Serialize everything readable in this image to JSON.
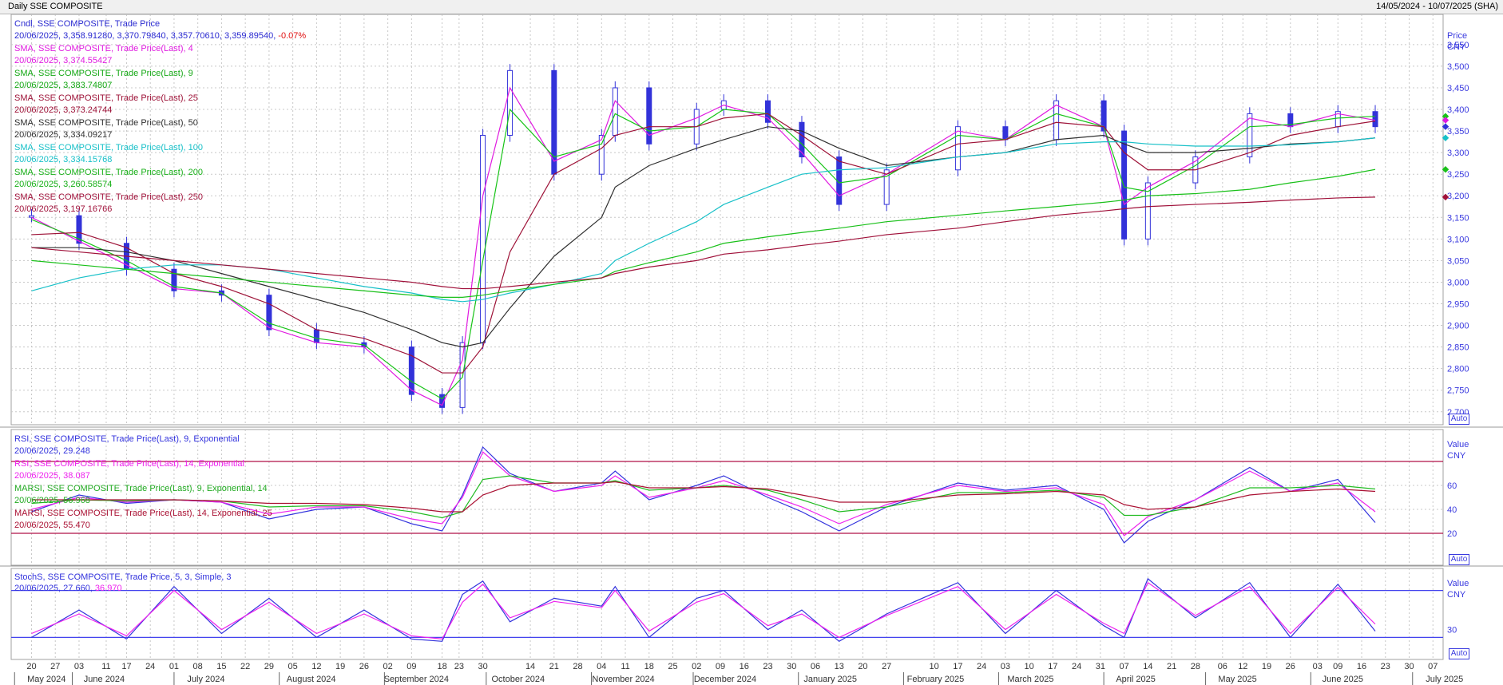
{
  "window": {
    "title": "Daily SSE COMPOSITE",
    "range": "14/05/2024 - 10/07/2025 (SHA)"
  },
  "colors": {
    "candle": "#3232d9",
    "sma4": "#e01be0",
    "sma9": "#18c418",
    "sma25": "#9e1338",
    "sma50": "#303030",
    "sma100": "#17c0c8",
    "sma200": "#19c019",
    "sma250": "#a0113a",
    "rsi9": "#3333dd",
    "rsi14": "#ee22ee",
    "marsi9": "#22bb22",
    "marsi14": "#aa1133",
    "band": "#b01048",
    "stoch_k": "#3333dd",
    "stoch_d": "#ee22ee",
    "stoch_band": "#4444ee"
  },
  "legends": {
    "price": [
      {
        "name": "Cndl, SSE COMPOSITE, Trade Price",
        "value": "20/06/2025, 3,358.91280, 3,370.79840, 3,357.70610, 3,359.89540,",
        "change": "-0.07%",
        "color": "#2a2ad0"
      },
      {
        "name": "SMA, SSE COMPOSITE, Trade Price(Last),  4",
        "value": "20/06/2025, 3,374.55427",
        "color": "#e01be0"
      },
      {
        "name": "SMA, SSE COMPOSITE, Trade Price(Last),  9",
        "value": "20/06/2025, 3,383.74807",
        "color": "#15a815"
      },
      {
        "name": "SMA, SSE COMPOSITE, Trade Price(Last),  25",
        "value": "20/06/2025, 3,373.24744",
        "color": "#9e1338"
      },
      {
        "name": "SMA, SSE COMPOSITE, Trade Price(Last),  50",
        "value": "20/06/2025, 3,334.09217",
        "color": "#303030"
      },
      {
        "name": "SMA, SSE COMPOSITE, Trade Price(Last),  100",
        "value": "20/06/2025, 3,334.15768",
        "color": "#17c0c8"
      },
      {
        "name": "SMA, SSE COMPOSITE, Trade Price(Last),  200",
        "value": "20/06/2025, 3,260.58574",
        "color": "#19b019"
      },
      {
        "name": "SMA, SSE COMPOSITE, Trade Price(Last),  250",
        "value": "20/06/2025, 3,197.16766",
        "color": "#a0113a"
      }
    ],
    "rsi": [
      {
        "name": "RSI, SSE COMPOSITE, Trade Price(Last),  9, Exponential",
        "value": "20/06/2025, 29.248",
        "color": "#3333dd"
      },
      {
        "name": "RSI, SSE COMPOSITE, Trade Price(Last),  14, Exponential",
        "value": "20/06/2025, 38.087",
        "color": "#ee22ee"
      },
      {
        "name": "MARSI, SSE COMPOSITE, Trade Price(Last),  9, Exponential, 14",
        "value": "20/06/2025, 56.968",
        "color": "#22aa22"
      },
      {
        "name": "MARSI, SSE COMPOSITE, Trade Price(Last),  14, Exponential, 25",
        "value": "20/06/2025, 55.470",
        "color": "#aa1133"
      }
    ],
    "stoch": [
      {
        "name": "StochS, SSE COMPOSITE, Trade Price,  5, 3, Simple, 3",
        "value": "20/06/2025, 27.660,",
        "value2": "36.970",
        "color": "#3333dd",
        "color2": "#ee22ee"
      }
    ]
  },
  "axes": {
    "price_label": "Price",
    "price_unit": "CNY",
    "price_ticks": [
      "3,550",
      "3,500",
      "3,450",
      "3,400",
      "3,350",
      "3,300",
      "3,250",
      "3,200",
      "3,150",
      "3,100",
      "3,050",
      "3,000",
      "2,950",
      "2,900",
      "2,850",
      "2,800",
      "2,750",
      "2,700"
    ],
    "rsi_label": "Value",
    "rsi_unit": "CNY",
    "rsi_ticks": [
      "60",
      "40",
      "20"
    ],
    "stoch_label": "Value",
    "stoch_unit": "CNY",
    "stoch_ticks": [
      "30"
    ],
    "auto": "Auto",
    "day_ticks": [
      "20",
      "27",
      "03",
      "11",
      "17",
      "24",
      "01",
      "08",
      "15",
      "22",
      "29",
      "05",
      "12",
      "19",
      "26",
      "02",
      "09",
      "18",
      "23",
      "30",
      "14",
      "21",
      "28",
      "04",
      "11",
      "18",
      "25",
      "02",
      "09",
      "16",
      "23",
      "30",
      "06",
      "13",
      "20",
      "27",
      "10",
      "17",
      "24",
      "03",
      "10",
      "17",
      "24",
      "31",
      "07",
      "14",
      "21",
      "28",
      "06",
      "12",
      "19",
      "26",
      "03",
      "09",
      "16",
      "23",
      "30",
      "07"
    ],
    "month_ticks": [
      "May 2024",
      "June 2024",
      "July 2024",
      "August 2024",
      "September 2024",
      "October 2024",
      "November 2024",
      "December 2024",
      "January 2025",
      "February 2025",
      "March 2025",
      "April 2025",
      "May 2025",
      "June 2025",
      "July 2025"
    ]
  },
  "chart_data": {
    "type": "line",
    "title": "Daily SSE COMPOSITE",
    "subtitle": "14/05/2024 - 10/07/2025 (SHA)",
    "ylabel": "Price CNY",
    "ylim": [
      2670,
      3620
    ],
    "x": [
      "2024-05-20",
      "2024-06-03",
      "2024-06-17",
      "2024-07-01",
      "2024-07-15",
      "2024-07-29",
      "2024-08-12",
      "2024-08-26",
      "2024-09-09",
      "2024-09-18",
      "2024-09-24",
      "2024-09-30",
      "2024-10-08",
      "2024-10-21",
      "2024-11-04",
      "2024-11-08",
      "2024-11-18",
      "2024-12-02",
      "2024-12-10",
      "2024-12-23",
      "2025-01-02",
      "2025-01-13",
      "2025-01-27",
      "2025-02-17",
      "2025-03-03",
      "2025-03-18",
      "2025-04-01",
      "2025-04-07",
      "2025-04-14",
      "2025-04-28",
      "2025-05-14",
      "2025-05-26",
      "2025-06-09",
      "2025-06-20"
    ],
    "series": [
      {
        "name": "Cndl, SSE COMPOSITE, Trade Price",
        "values": [
          3154,
          3090,
          3030,
          2980,
          2970,
          2890,
          2860,
          2850,
          2740,
          2710,
          2860,
          3340,
          3490,
          3250,
          3340,
          3450,
          3320,
          3400,
          3420,
          3370,
          3290,
          3180,
          3260,
          3360,
          3330,
          3420,
          3350,
          3100,
          3230,
          3290,
          3390,
          3360,
          3395,
          3360
        ]
      },
      {
        "name": "SMA 4",
        "values": [
          3150,
          3095,
          3040,
          2985,
          2975,
          2895,
          2860,
          2850,
          2750,
          2715,
          2820,
          3200,
          3450,
          3280,
          3330,
          3420,
          3340,
          3380,
          3410,
          3380,
          3300,
          3200,
          3250,
          3350,
          3330,
          3410,
          3360,
          3180,
          3220,
          3280,
          3380,
          3360,
          3390,
          3375
        ]
      },
      {
        "name": "SMA 9",
        "values": [
          3145,
          3100,
          3050,
          2990,
          2975,
          2905,
          2870,
          2855,
          2770,
          2730,
          2780,
          3050,
          3400,
          3290,
          3320,
          3390,
          3350,
          3360,
          3400,
          3390,
          3320,
          3230,
          3245,
          3340,
          3330,
          3390,
          3360,
          3220,
          3210,
          3270,
          3360,
          3365,
          3380,
          3384
        ]
      },
      {
        "name": "SMA 25",
        "values": [
          3110,
          3115,
          3080,
          3020,
          2990,
          2950,
          2890,
          2870,
          2830,
          2790,
          2790,
          2850,
          3070,
          3250,
          3310,
          3340,
          3360,
          3360,
          3380,
          3390,
          3340,
          3280,
          3250,
          3320,
          3330,
          3370,
          3360,
          3300,
          3260,
          3260,
          3300,
          3340,
          3360,
          3373
        ]
      },
      {
        "name": "SMA 50",
        "values": [
          3080,
          3080,
          3070,
          3050,
          3020,
          2990,
          2960,
          2930,
          2890,
          2860,
          2850,
          2860,
          2940,
          3060,
          3150,
          3220,
          3270,
          3310,
          3330,
          3360,
          3350,
          3310,
          3270,
          3290,
          3300,
          3330,
          3340,
          3320,
          3300,
          3300,
          3310,
          3320,
          3325,
          3334
        ]
      },
      {
        "name": "SMA 100",
        "values": [
          2980,
          3010,
          3030,
          3040,
          3040,
          3030,
          3010,
          2990,
          2975,
          2960,
          2955,
          2960,
          2975,
          2995,
          3020,
          3050,
          3090,
          3140,
          3180,
          3220,
          3250,
          3260,
          3265,
          3290,
          3300,
          3320,
          3325,
          3325,
          3320,
          3315,
          3315,
          3318,
          3325,
          3334
        ]
      },
      {
        "name": "SMA 200",
        "values": [
          3050,
          3040,
          3030,
          3020,
          3010,
          3000,
          2990,
          2980,
          2970,
          2965,
          2965,
          2970,
          2980,
          2995,
          3010,
          3025,
          3045,
          3070,
          3090,
          3105,
          3115,
          3125,
          3140,
          3155,
          3165,
          3175,
          3185,
          3190,
          3200,
          3205,
          3215,
          3230,
          3245,
          3261
        ]
      },
      {
        "name": "SMA 250",
        "values": [
          3080,
          3070,
          3060,
          3050,
          3040,
          3030,
          3020,
          3010,
          3000,
          2990,
          2985,
          2985,
          2990,
          3000,
          3010,
          3020,
          3035,
          3050,
          3065,
          3075,
          3085,
          3095,
          3110,
          3125,
          3140,
          3155,
          3165,
          3170,
          3175,
          3180,
          3185,
          3190,
          3195,
          3197
        ]
      }
    ],
    "rsi": {
      "ylabel": "Value CNY",
      "bands": [
        80,
        20
      ],
      "series": [
        {
          "name": "RSI 9",
          "values": [
            38,
            52,
            45,
            48,
            46,
            32,
            40,
            42,
            28,
            22,
            52,
            92,
            70,
            55,
            62,
            72,
            48,
            60,
            68,
            50,
            38,
            22,
            42,
            62,
            56,
            60,
            40,
            12,
            30,
            48,
            75,
            55,
            65,
            29
          ]
        },
        {
          "name": "RSI 14",
          "values": [
            40,
            50,
            46,
            48,
            46,
            36,
            42,
            42,
            32,
            28,
            50,
            88,
            68,
            55,
            60,
            68,
            50,
            58,
            64,
            52,
            42,
            28,
            44,
            60,
            55,
            58,
            44,
            18,
            34,
            48,
            72,
            55,
            62,
            38
          ]
        },
        {
          "name": "MARSI 9",
          "values": [
            45,
            48,
            47,
            48,
            47,
            42,
            43,
            43,
            38,
            33,
            38,
            65,
            68,
            62,
            62,
            64,
            56,
            58,
            60,
            56,
            48,
            38,
            42,
            54,
            54,
            56,
            50,
            35,
            35,
            42,
            58,
            58,
            60,
            57
          ]
        },
        {
          "name": "MARSI 14",
          "values": [
            48,
            48,
            48,
            48,
            47,
            45,
            45,
            44,
            41,
            38,
            38,
            52,
            60,
            62,
            62,
            63,
            58,
            58,
            59,
            57,
            52,
            46,
            46,
            52,
            53,
            55,
            52,
            44,
            40,
            42,
            52,
            55,
            57,
            55
          ]
        }
      ]
    },
    "stoch": {
      "ylabel": "Value CNY",
      "bands": [
        80,
        20
      ],
      "series": [
        {
          "name": "StochS %K",
          "values": [
            20,
            55,
            18,
            85,
            25,
            70,
            20,
            55,
            18,
            15,
            75,
            92,
            40,
            70,
            60,
            85,
            20,
            70,
            80,
            30,
            55,
            15,
            50,
            90,
            25,
            80,
            35,
            20,
            95,
            45,
            90,
            20,
            88,
            28
          ]
        },
        {
          "name": "StochS %D",
          "values": [
            25,
            50,
            22,
            80,
            30,
            65,
            25,
            50,
            22,
            18,
            65,
            88,
            45,
            66,
            58,
            80,
            28,
            65,
            76,
            35,
            50,
            20,
            48,
            85,
            30,
            75,
            38,
            25,
            90,
            48,
            85,
            25,
            84,
            37
          ]
        }
      ]
    }
  }
}
